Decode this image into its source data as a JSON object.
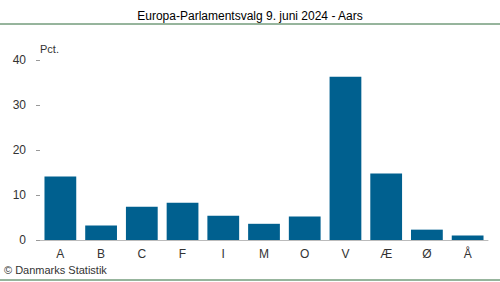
{
  "chart_data": {
    "type": "bar",
    "title": "Europa-Parlamentsvalg 9. juni 2024 - Aars",
    "ylabel": "Pct.",
    "annotations": [
      "© Danmarks Statistik"
    ],
    "categories": [
      "A",
      "B",
      "C",
      "F",
      "I",
      "M",
      "O",
      "V",
      "Æ",
      "Ø",
      "Å"
    ],
    "values": [
      14.1,
      3.2,
      7.4,
      8.3,
      5.4,
      3.6,
      5.2,
      36.3,
      14.8,
      2.3,
      1.0
    ],
    "color": "#00608f",
    "ylim": [
      0,
      40
    ],
    "yticks": [
      0,
      10,
      20,
      30,
      40
    ],
    "grid": false
  }
}
